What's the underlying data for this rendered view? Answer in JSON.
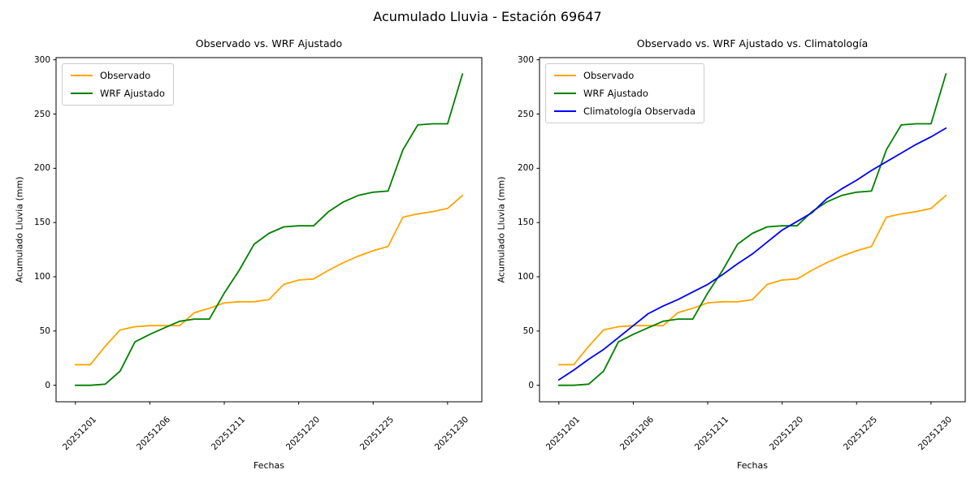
{
  "figure": {
    "suptitle": "Acumulado Lluvia - Estación 69647",
    "background": "#ffffff"
  },
  "chart_data": [
    {
      "type": "line",
      "title": "Observado vs. WRF Ajustado",
      "xlabel": "Fechas",
      "ylabel": "Acumulado Lluvia (mm)",
      "ylim": [
        0,
        300
      ],
      "y_ticks": [
        0,
        50,
        100,
        150,
        200,
        250,
        300
      ],
      "x_tick_labels": [
        "20251201",
        "20251206",
        "20251211",
        "20251220",
        "20251225",
        "20251230"
      ],
      "x_tick_indices": [
        0,
        5,
        10,
        15,
        20,
        25
      ],
      "legend_position": "upper left",
      "grid": false,
      "series": [
        {
          "name": "Observado",
          "color": "#FFA500",
          "values": [
            19,
            19,
            36,
            51,
            54,
            55,
            55,
            55,
            67,
            71,
            76,
            77,
            77,
            79,
            93,
            97,
            98,
            106,
            113,
            119,
            124,
            128,
            155,
            158,
            160,
            163,
            175
          ]
        },
        {
          "name": "WRF Ajustado",
          "color": "#008000",
          "values": [
            0,
            0,
            1,
            13,
            40,
            47,
            53,
            59,
            61,
            61,
            85,
            106,
            130,
            140,
            146,
            147,
            147,
            160,
            169,
            175,
            178,
            179,
            217,
            240,
            241,
            241,
            287
          ]
        }
      ]
    },
    {
      "type": "line",
      "title": "Observado vs. WRF Ajustado vs. Climatología",
      "xlabel": "Fechas",
      "ylabel": "Acumulado Lluvia (mm)",
      "ylim": [
        0,
        300
      ],
      "y_ticks": [
        0,
        50,
        100,
        150,
        200,
        250,
        300
      ],
      "x_tick_labels": [
        "20251201",
        "20251206",
        "20251211",
        "20251220",
        "20251225",
        "20251230"
      ],
      "x_tick_indices": [
        0,
        5,
        10,
        15,
        20,
        25
      ],
      "legend_position": "upper left",
      "grid": false,
      "series": [
        {
          "name": "Observado",
          "color": "#FFA500",
          "values": [
            19,
            19,
            36,
            51,
            54,
            55,
            55,
            55,
            67,
            71,
            76,
            77,
            77,
            79,
            93,
            97,
            98,
            106,
            113,
            119,
            124,
            128,
            155,
            158,
            160,
            163,
            175
          ]
        },
        {
          "name": "WRF Ajustado",
          "color": "#008000",
          "values": [
            0,
            0,
            1,
            13,
            40,
            47,
            53,
            59,
            61,
            61,
            85,
            106,
            130,
            140,
            146,
            147,
            147,
            160,
            169,
            175,
            178,
            179,
            217,
            240,
            241,
            241,
            287
          ]
        },
        {
          "name": "Climatología Observada",
          "color": "#0000FF",
          "values": [
            5,
            14,
            24,
            33,
            44,
            55,
            66,
            73,
            79,
            86,
            93,
            102,
            112,
            121,
            132,
            143,
            151,
            159,
            172,
            181,
            189,
            198,
            206,
            214,
            222,
            229,
            237
          ]
        }
      ]
    }
  ]
}
